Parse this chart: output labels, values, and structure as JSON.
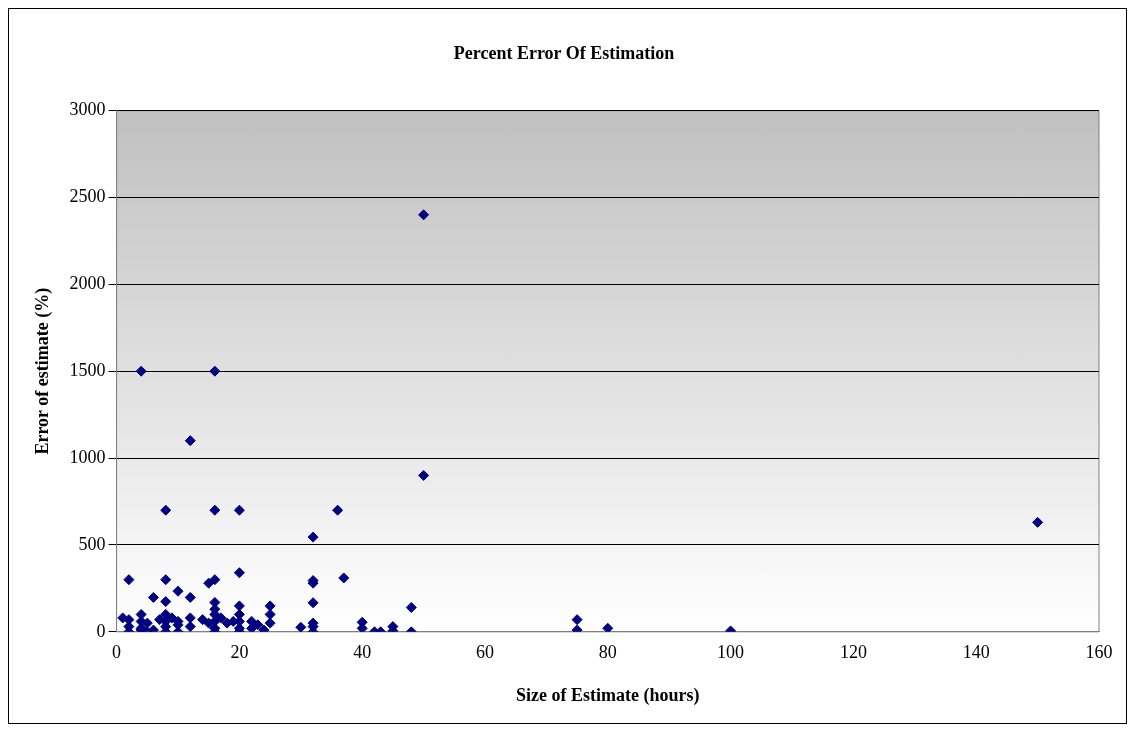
{
  "chart_data": {
    "type": "scatter",
    "title": "Percent Error Of Estimation",
    "xlabel": "Size of Estimate (hours)",
    "ylabel": "Error of estimate (%)",
    "x": [
      4,
      16,
      12,
      50,
      50,
      150,
      8,
      16,
      20,
      36,
      32,
      37,
      20,
      2,
      8,
      15,
      16,
      32,
      32,
      10,
      6,
      12,
      8,
      16,
      20,
      25,
      32,
      1,
      2,
      2,
      2,
      4,
      4,
      4,
      5,
      5,
      4,
      6,
      7,
      8,
      8,
      8,
      8,
      9,
      10,
      10,
      10,
      12,
      12,
      14,
      15,
      16,
      16,
      16,
      16,
      16,
      17,
      18,
      19,
      20,
      20,
      20,
      20,
      22,
      22,
      23,
      24,
      25,
      25,
      30,
      32,
      32,
      32,
      40,
      40,
      42,
      43,
      45,
      45,
      48,
      48,
      75,
      75,
      80,
      100
    ],
    "values": [
      1500,
      1500,
      1100,
      2400,
      900,
      630,
      700,
      700,
      700,
      700,
      545,
      310,
      340,
      300,
      300,
      280,
      300,
      295,
      280,
      234,
      198,
      198,
      174,
      169,
      149,
      149,
      167,
      80,
      70,
      30,
      0,
      100,
      60,
      20,
      0,
      50,
      10,
      10,
      70,
      100,
      60,
      30,
      0,
      80,
      60,
      0,
      40,
      80,
      30,
      70,
      50,
      100,
      60,
      20,
      0,
      130,
      80,
      50,
      60,
      100,
      60,
      20,
      0,
      60,
      20,
      40,
      10,
      100,
      50,
      26,
      50,
      30,
      0,
      55,
      20,
      0,
      0,
      30,
      5,
      140,
      0,
      70,
      10,
      20,
      5
    ],
    "color": "#000080",
    "marker": "diamond",
    "xlim": [
      0,
      160
    ],
    "xticks": [
      0,
      20,
      40,
      60,
      80,
      100,
      120,
      140,
      160
    ],
    "ylim": [
      0,
      3000
    ],
    "yticks": [
      0,
      500,
      1000,
      1500,
      2000,
      2500,
      3000
    ],
    "grid": "y",
    "legend": false
  }
}
